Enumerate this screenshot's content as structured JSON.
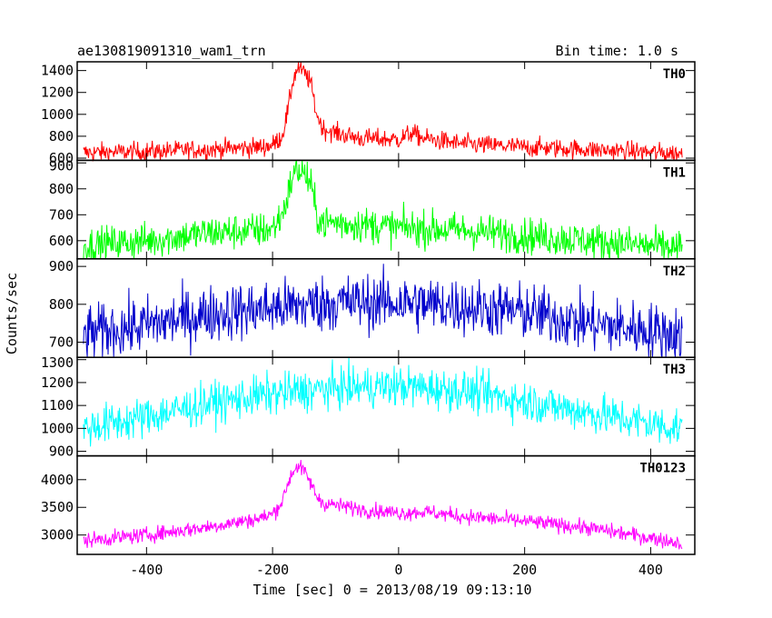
{
  "chart_data": {
    "type": "line",
    "title_left": "ae130819091310_wam1_trn",
    "title_right": "Bin time: 1.0 s",
    "xlabel": "Time [sec] 0 = 2013/08/19 09:13:10",
    "ylabel": "Counts/sec",
    "xlim": [
      -510,
      470
    ],
    "x_ticks": [
      -400,
      -200,
      0,
      200,
      400
    ],
    "grid": false,
    "panels": [
      {
        "name": "TH0",
        "color": "#ff0000",
        "ylim": [
          580,
          1480
        ],
        "y_ticks": [
          600,
          800,
          1000,
          1200,
          1400
        ],
        "profile": {
          "x": [
            -500,
            -400,
            -300,
            -220,
            -200,
            -185,
            -175,
            -168,
            -160,
            -150,
            -140,
            -130,
            -120,
            -100,
            -60,
            0,
            20,
            40,
            100,
            200,
            300,
            450
          ],
          "y": [
            650,
            660,
            680,
            700,
            720,
            800,
            1050,
            1300,
            1430,
            1380,
            1300,
            1000,
            870,
            830,
            780,
            770,
            830,
            780,
            730,
            700,
            680,
            640
          ]
        },
        "noise": 45
      },
      {
        "name": "TH1",
        "color": "#00ff00",
        "ylim": [
          530,
          910
        ],
        "y_ticks": [
          600,
          700,
          800,
          900
        ],
        "profile": {
          "x": [
            -500,
            -400,
            -300,
            -220,
            -200,
            -185,
            -175,
            -168,
            -160,
            -150,
            -140,
            -130,
            -120,
            -100,
            0,
            100,
            200,
            300,
            450
          ],
          "y": [
            580,
            600,
            630,
            640,
            645,
            700,
            780,
            850,
            875,
            860,
            820,
            700,
            670,
            670,
            650,
            640,
            620,
            600,
            570
          ]
        },
        "noise": 35
      },
      {
        "name": "TH2",
        "color": "#0000cc",
        "ylim": [
          660,
          920
        ],
        "y_ticks": [
          700,
          800,
          900
        ],
        "profile": {
          "x": [
            -500,
            -400,
            -300,
            -200,
            -100,
            0,
            100,
            200,
            300,
            400,
            450
          ],
          "y": [
            720,
            745,
            775,
            790,
            805,
            805,
            795,
            780,
            750,
            730,
            720
          ]
        },
        "noise": 38
      },
      {
        "name": "TH3",
        "color": "#00ffff",
        "ylim": [
          880,
          1310
        ],
        "y_ticks": [
          900,
          1000,
          1100,
          1200,
          1300
        ],
        "profile": {
          "x": [
            -500,
            -400,
            -300,
            -200,
            -100,
            0,
            100,
            200,
            300,
            400,
            450
          ],
          "y": [
            1000,
            1050,
            1110,
            1150,
            1175,
            1185,
            1165,
            1120,
            1070,
            1020,
            1000
          ]
        },
        "noise": 45
      },
      {
        "name": "TH0123",
        "color": "#ff00ff",
        "ylim": [
          2650,
          4430
        ],
        "y_ticks": [
          3000,
          3500,
          4000
        ],
        "profile": {
          "x": [
            -500,
            -400,
            -300,
            -220,
            -200,
            -185,
            -175,
            -168,
            -160,
            -150,
            -140,
            -130,
            -120,
            -100,
            -50,
            0,
            40,
            100,
            200,
            300,
            400,
            450
          ],
          "y": [
            2900,
            3000,
            3150,
            3300,
            3380,
            3600,
            3950,
            4150,
            4250,
            4150,
            3950,
            3700,
            3580,
            3540,
            3450,
            3400,
            3420,
            3340,
            3250,
            3130,
            2950,
            2850
          ]
        },
        "noise": 70
      }
    ]
  }
}
